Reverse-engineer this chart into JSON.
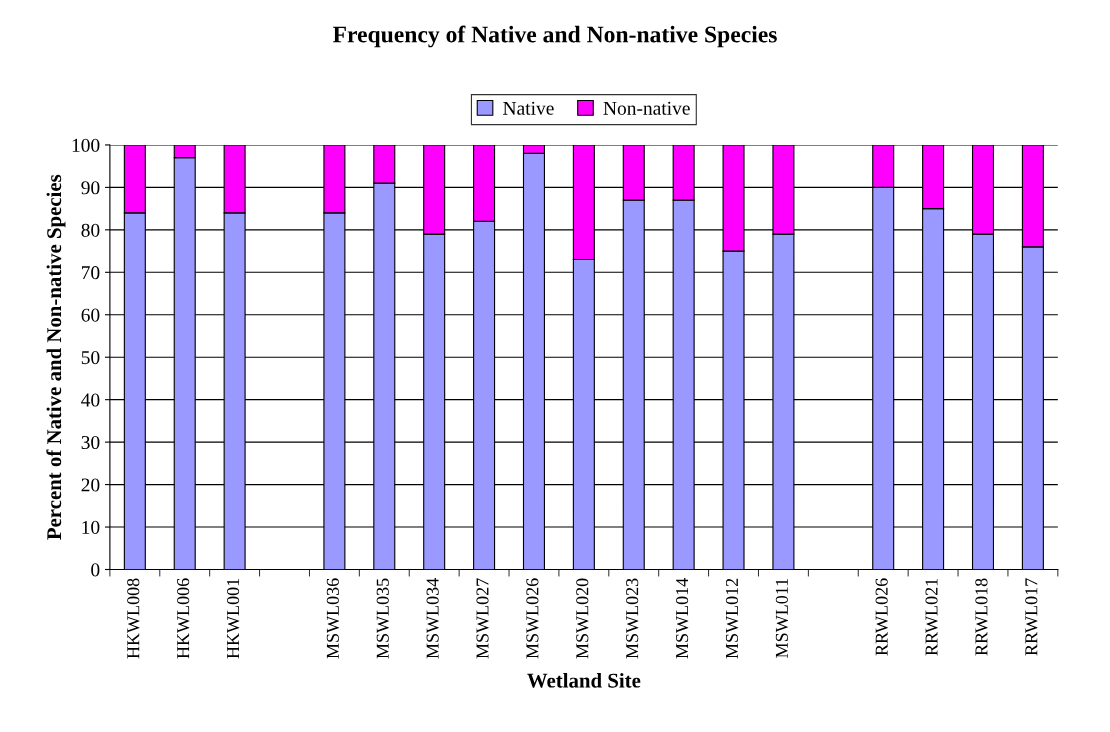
{
  "chart_data": {
    "type": "bar",
    "title": "Frequency of Native and Non-native Species",
    "xlabel": "Wetland Site",
    "ylabel": "Percent of Native and Non-native Species",
    "categories": [
      "HKWL008",
      "HKWL006",
      "HKWL001",
      null,
      "MSWL036",
      "MSWL035",
      "MSWL034",
      "MSWL027",
      "MSWL026",
      "MSWL020",
      "MSWL023",
      "MSWL014",
      "MSWL012",
      "MSWL011",
      null,
      "RRWL026",
      "RRWL021",
      "RRWL018",
      "RRWL017"
    ],
    "stacked": true,
    "series": [
      {
        "name": "Native",
        "color": "#9999ff",
        "values": [
          84,
          97,
          84,
          null,
          84,
          91,
          79,
          82,
          98,
          73,
          87,
          87,
          75,
          79,
          null,
          90,
          85,
          79,
          76
        ]
      },
      {
        "name": "Non-native",
        "color": "#ff00ff",
        "values": [
          16,
          3,
          16,
          null,
          16,
          9,
          21,
          18,
          2,
          27,
          13,
          13,
          25,
          21,
          null,
          10,
          15,
          21,
          24
        ]
      }
    ],
    "ylim": [
      0,
      100
    ],
    "yticks": [
      0,
      10,
      20,
      30,
      40,
      50,
      60,
      70,
      80,
      90,
      100
    ],
    "grid": "y",
    "legend": "top"
  }
}
